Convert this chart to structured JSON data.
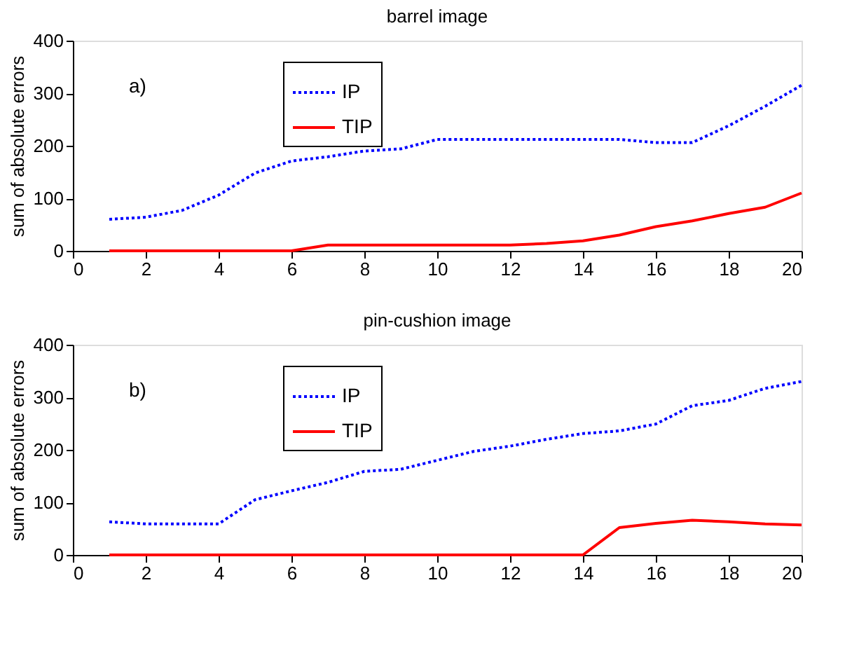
{
  "chart_data": [
    {
      "type": "line",
      "title": "barrel image",
      "ylabel": "sum of absolute errors",
      "x": [
        1,
        2,
        3,
        4,
        5,
        6,
        7,
        8,
        9,
        10,
        11,
        12,
        13,
        14,
        15,
        16,
        17,
        18,
        19,
        20
      ],
      "series": [
        {
          "name": "IP",
          "color": "#0000ff",
          "line_style": "dotted",
          "values": [
            60,
            64,
            77,
            106,
            148,
            171,
            179,
            190,
            194,
            212,
            212,
            212,
            212,
            212,
            212,
            206,
            206,
            238,
            275,
            315
          ]
        },
        {
          "name": "TIP",
          "color": "#ff0000",
          "line_style": "solid",
          "values": [
            0,
            0,
            0,
            0,
            0,
            0,
            11,
            11,
            11,
            11,
            11,
            11,
            14,
            19,
            30,
            46,
            57,
            71,
            83,
            110
          ]
        }
      ],
      "xlim": [
        0,
        20
      ],
      "xticks": [
        0,
        2,
        4,
        6,
        8,
        10,
        12,
        14,
        16,
        18,
        20
      ],
      "ylim": [
        0,
        400
      ],
      "yticks": [
        0,
        100,
        200,
        300,
        400
      ],
      "grid": false,
      "legend": "top left",
      "annotations": [
        "a)"
      ]
    },
    {
      "type": "line",
      "title": "pin-cushion image",
      "ylabel": "sum of absolute errors",
      "x": [
        1,
        2,
        3,
        4,
        5,
        6,
        7,
        8,
        9,
        10,
        11,
        12,
        13,
        14,
        15,
        16,
        17,
        18,
        19,
        20
      ],
      "series": [
        {
          "name": "IP",
          "color": "#0000ff",
          "line_style": "dotted",
          "values": [
            63,
            59,
            59,
            59,
            105,
            122,
            138,
            159,
            163,
            180,
            197,
            207,
            220,
            231,
            236,
            249,
            284,
            294,
            317,
            330
          ]
        },
        {
          "name": "TIP",
          "color": "#ff0000",
          "line_style": "solid",
          "values": [
            0,
            0,
            0,
            0,
            0,
            0,
            0,
            0,
            0,
            0,
            0,
            0,
            0,
            0,
            52,
            60,
            66,
            63,
            59,
            57
          ]
        }
      ],
      "xlim": [
        0,
        20
      ],
      "xticks": [
        0,
        2,
        4,
        6,
        8,
        10,
        12,
        14,
        16,
        18,
        20
      ],
      "ylim": [
        0,
        400
      ],
      "yticks": [
        0,
        100,
        200,
        300,
        400
      ],
      "grid": false,
      "legend": "top left",
      "annotations": [
        "b)"
      ]
    }
  ]
}
